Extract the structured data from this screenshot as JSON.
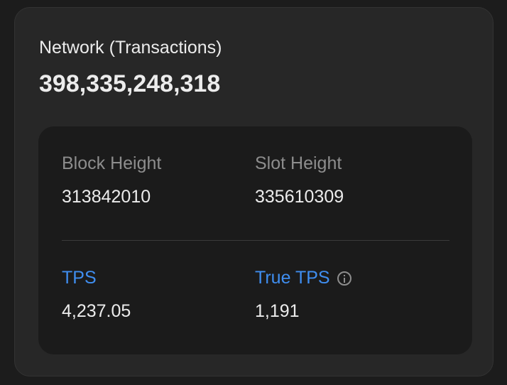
{
  "network": {
    "title": "Network (Transactions)",
    "total_transactions": "398,335,248,318",
    "stats": {
      "block_height": {
        "label": "Block Height",
        "value": "313842010"
      },
      "slot_height": {
        "label": "Slot Height",
        "value": "335610309"
      },
      "tps": {
        "label": "TPS",
        "value": "4,237.05"
      },
      "true_tps": {
        "label": "True TPS",
        "value": "1,191",
        "icon": "info-icon"
      }
    }
  },
  "colors": {
    "accent": "#3f8ef0",
    "card_bg": "#272727",
    "inner_bg": "#1b1b1b",
    "page_bg": "#1c1c1c"
  }
}
